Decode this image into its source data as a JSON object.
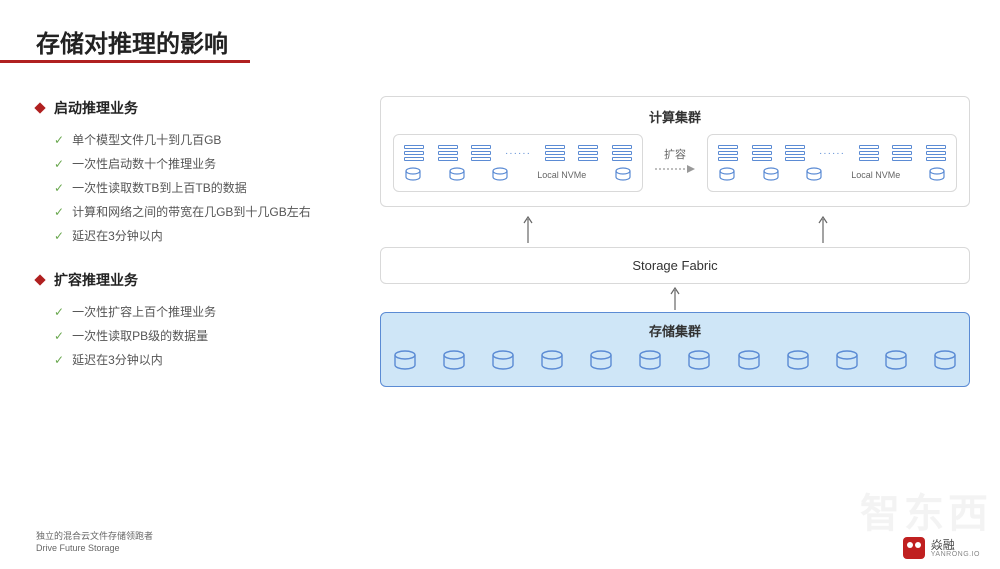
{
  "title": "存储对推理的影响",
  "sections": [
    {
      "heading": "启动推理业务",
      "items": [
        "单个模型文件几十到几百GB",
        "一次性启动数十个推理业务",
        "一次性读取数TB到上百TB的数据",
        "计算和网络之间的带宽在几GB到十几GB左右",
        "延迟在3分钟以内"
      ]
    },
    {
      "heading": "扩容推理业务",
      "items": [
        "一次性扩容上百个推理业务",
        "一次性读取PB级的数据量",
        "延迟在3分钟以内"
      ]
    }
  ],
  "diagram": {
    "compute_cluster_label": "计算集群",
    "expand_label": "扩容",
    "local_nvme_label": "Local NVMe",
    "fabric_label": "Storage Fabric",
    "storage_cluster_label": "存储集群",
    "colors": {
      "box_border": "#d9d9d9",
      "icon_stroke": "#5b8bd4",
      "storage_bg": "#cfe6f7",
      "storage_border": "#5b8bd4",
      "accent": "#b02020",
      "check": "#6aa84f"
    },
    "pod_racks_per_row": 4,
    "pod_disks_per_row": 4,
    "storage_disks": 12
  },
  "footer": {
    "line1": "独立的混合云文件存储领跑者",
    "line2": "Drive Future Storage",
    "brand_cn": "焱融",
    "brand_en": "YANRONG.IO"
  },
  "watermark": "智东西"
}
